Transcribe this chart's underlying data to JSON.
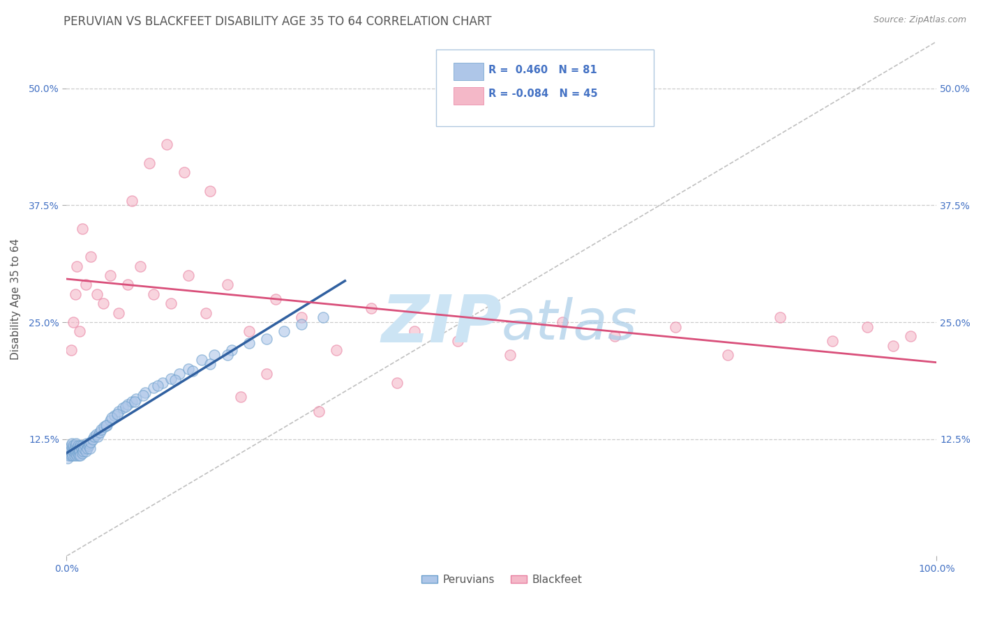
{
  "title": "PERUVIAN VS BLACKFEET DISABILITY AGE 35 TO 64 CORRELATION CHART",
  "source": "Source: ZipAtlas.com",
  "ylabel": "Disability Age 35 to 64",
  "xlim": [
    0.0,
    1.0
  ],
  "ylim": [
    0.0,
    0.55
  ],
  "y_tick_labels": [
    "12.5%",
    "25.0%",
    "37.5%",
    "50.0%"
  ],
  "y_tick_values": [
    0.125,
    0.25,
    0.375,
    0.5
  ],
  "legend_blue_label": "Peruvians",
  "legend_pink_label": "Blackfeet",
  "R_blue": 0.46,
  "N_blue": 81,
  "R_pink": -0.084,
  "N_pink": 45,
  "blue_color": "#aec6e8",
  "pink_color": "#f4b8c8",
  "blue_edge_color": "#6b9fcc",
  "pink_edge_color": "#e87fa0",
  "blue_line_color": "#3060a0",
  "pink_line_color": "#d94f7a",
  "diagonal_color": "#c0c0c0",
  "background_color": "#ffffff",
  "grid_color": "#cccccc",
  "title_color": "#555555",
  "watermark_color": "#cce4f4",
  "watermark_text": "ZIPatlas",
  "axis_label_color": "#4472c4",
  "blue_scatter_x": [
    0.001,
    0.002,
    0.003,
    0.003,
    0.004,
    0.005,
    0.005,
    0.006,
    0.006,
    0.007,
    0.007,
    0.008,
    0.008,
    0.009,
    0.009,
    0.01,
    0.01,
    0.011,
    0.011,
    0.012,
    0.012,
    0.013,
    0.013,
    0.014,
    0.014,
    0.015,
    0.016,
    0.016,
    0.017,
    0.018,
    0.018,
    0.019,
    0.02,
    0.021,
    0.022,
    0.023,
    0.024,
    0.025,
    0.026,
    0.027,
    0.028,
    0.03,
    0.032,
    0.034,
    0.036,
    0.038,
    0.04,
    0.043,
    0.046,
    0.05,
    0.055,
    0.06,
    0.065,
    0.07,
    0.075,
    0.08,
    0.09,
    0.1,
    0.11,
    0.12,
    0.13,
    0.14,
    0.155,
    0.17,
    0.19,
    0.21,
    0.23,
    0.25,
    0.27,
    0.295,
    0.045,
    0.052,
    0.058,
    0.068,
    0.078,
    0.088,
    0.105,
    0.125,
    0.145,
    0.165,
    0.185
  ],
  "blue_scatter_y": [
    0.105,
    0.11,
    0.108,
    0.115,
    0.112,
    0.108,
    0.118,
    0.11,
    0.12,
    0.108,
    0.115,
    0.112,
    0.118,
    0.108,
    0.115,
    0.11,
    0.118,
    0.112,
    0.12,
    0.108,
    0.115,
    0.11,
    0.118,
    0.108,
    0.115,
    0.112,
    0.118,
    0.108,
    0.115,
    0.11,
    0.118,
    0.112,
    0.115,
    0.118,
    0.112,
    0.12,
    0.115,
    0.118,
    0.12,
    0.115,
    0.122,
    0.125,
    0.128,
    0.13,
    0.128,
    0.132,
    0.135,
    0.138,
    0.14,
    0.145,
    0.15,
    0.155,
    0.158,
    0.162,
    0.165,
    0.168,
    0.175,
    0.18,
    0.185,
    0.19,
    0.195,
    0.2,
    0.21,
    0.215,
    0.22,
    0.228,
    0.232,
    0.24,
    0.248,
    0.255,
    0.14,
    0.148,
    0.152,
    0.16,
    0.165,
    0.172,
    0.182,
    0.188,
    0.198,
    0.205,
    0.215
  ],
  "pink_scatter_x": [
    0.005,
    0.008,
    0.01,
    0.012,
    0.015,
    0.018,
    0.022,
    0.028,
    0.035,
    0.042,
    0.05,
    0.06,
    0.07,
    0.085,
    0.1,
    0.12,
    0.14,
    0.16,
    0.185,
    0.21,
    0.24,
    0.27,
    0.31,
    0.35,
    0.4,
    0.45,
    0.51,
    0.57,
    0.63,
    0.7,
    0.76,
    0.82,
    0.88,
    0.92,
    0.95,
    0.97,
    0.075,
    0.095,
    0.115,
    0.135,
    0.165,
    0.2,
    0.23,
    0.29,
    0.38
  ],
  "pink_scatter_y": [
    0.22,
    0.25,
    0.28,
    0.31,
    0.24,
    0.35,
    0.29,
    0.32,
    0.28,
    0.27,
    0.3,
    0.26,
    0.29,
    0.31,
    0.28,
    0.27,
    0.3,
    0.26,
    0.29,
    0.24,
    0.275,
    0.255,
    0.22,
    0.265,
    0.24,
    0.23,
    0.215,
    0.25,
    0.235,
    0.245,
    0.215,
    0.255,
    0.23,
    0.245,
    0.225,
    0.235,
    0.38,
    0.42,
    0.44,
    0.41,
    0.39,
    0.17,
    0.195,
    0.155,
    0.185
  ]
}
